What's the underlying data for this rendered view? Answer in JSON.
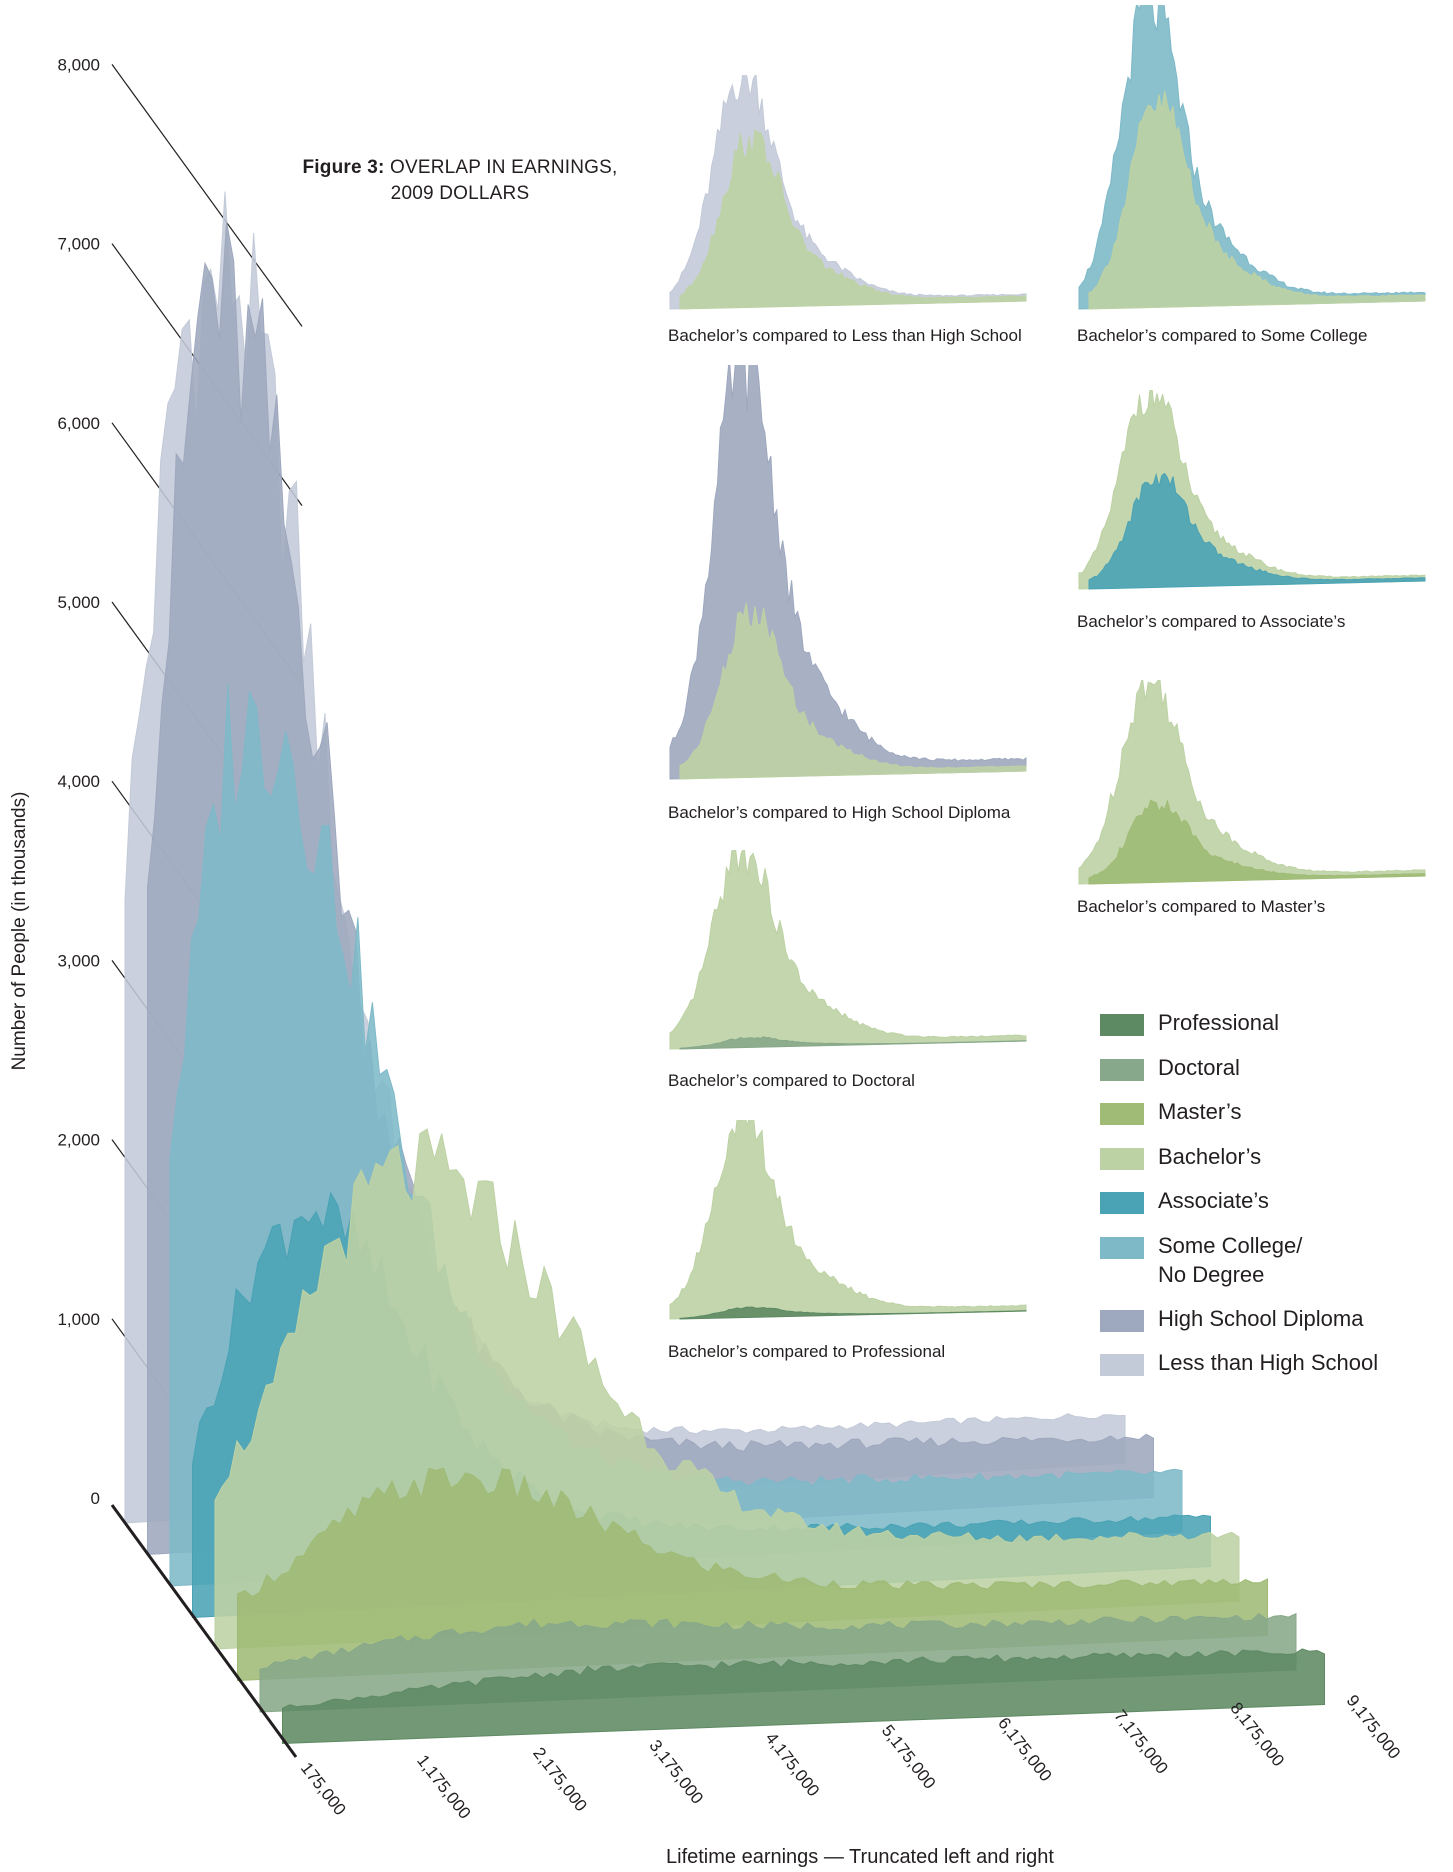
{
  "figure": {
    "title_bold": "Figure 3:",
    "title_rest_line1": "OVERLAP IN EARNINGS,",
    "title_rest_line2": "2009 DOLLARS"
  },
  "colors": {
    "Professional": "#5e8a63",
    "Doctoral": "#87a88a",
    "Master's": "#9fbb75",
    "Bachelor's": "#bdd2a4",
    "Associate's": "#4aa3b5",
    "Some College/No Degree": "#7eb9c8",
    "High School Diploma": "#9ea8be",
    "Less than High School": "#c3cad8"
  },
  "legend": [
    {
      "key": "Professional",
      "line1": "Professional",
      "line2": ""
    },
    {
      "key": "Doctoral",
      "line1": "Doctoral",
      "line2": ""
    },
    {
      "key": "Master's",
      "line1": "Master’s",
      "line2": ""
    },
    {
      "key": "Bachelor's",
      "line1": "Bachelor’s",
      "line2": ""
    },
    {
      "key": "Associate's",
      "line1": "Associate’s",
      "line2": ""
    },
    {
      "key": "Some College/No Degree",
      "line1": "Some College/",
      "line2": "No Degree"
    },
    {
      "key": "High School Diploma",
      "line1": "High School Diploma",
      "line2": ""
    },
    {
      "key": "Less than High School",
      "line1": "Less than High School",
      "line2": ""
    }
  ],
  "chart_data": [
    {
      "type": "area",
      "subtype": "3d-stacked-depth",
      "title": "Figure 3: OVERLAP IN EARNINGS, 2009 DOLLARS",
      "xlabel": "Lifetime earnings — Truncated left and right",
      "ylabel": "Number of People (in thousands)",
      "x_ticks": [
        "175,000",
        "1,175,000",
        "2,175,000",
        "3,175,000",
        "4,175,000",
        "5,175,000",
        "6,175,000",
        "7,175,000",
        "8,175,000",
        "9,175,000"
      ],
      "y_ticks": [
        "0",
        "1,000",
        "2,000",
        "3,000",
        "4,000",
        "5,000",
        "6,000",
        "7,000",
        "8,000"
      ],
      "ylim": [
        0,
        8000
      ],
      "xlim": [
        175000,
        9175000
      ],
      "grid": false,
      "legend_position": "right",
      "x": [
        175000,
        675000,
        1175000,
        1675000,
        2175000,
        2675000,
        3175000,
        3675000,
        4175000,
        4675000,
        5175000,
        5675000,
        6175000,
        6675000,
        7175000,
        7675000,
        8175000,
        8675000,
        9175000
      ],
      "series": [
        {
          "name": "Less than High School",
          "values": [
            3600,
            6500,
            6900,
            5400,
            3100,
            1700,
            900,
            500,
            330,
            260,
            230,
            210,
            200,
            200,
            190,
            190,
            180,
            180,
            170
          ]
        },
        {
          "name": "High School Diploma",
          "values": [
            4000,
            7000,
            6400,
            4600,
            2600,
            1500,
            900,
            600,
            450,
            370,
            330,
            310,
            300,
            290,
            280,
            270,
            260,
            250,
            240
          ]
        },
        {
          "name": "Some College/No Degree",
          "values": [
            2400,
            4600,
            4700,
            3700,
            2400,
            1450,
            900,
            600,
            440,
            360,
            320,
            300,
            290,
            280,
            270,
            260,
            250,
            240,
            230
          ]
        },
        {
          "name": "Associate's",
          "values": [
            800,
            1800,
            2200,
            1900,
            1300,
            800,
            520,
            380,
            300,
            260,
            240,
            230,
            220,
            210,
            200,
            195,
            190,
            185,
            180
          ]
        },
        {
          "name": "Bachelor's",
          "values": [
            800,
            1300,
            2100,
            2500,
            2500,
            2200,
            1700,
            1200,
            850,
            620,
            480,
            400,
            360,
            330,
            310,
            300,
            290,
            280,
            270
          ]
        },
        {
          "name": "Master's",
          "values": [
            350,
            550,
            800,
            950,
            980,
            900,
            750,
            580,
            440,
            360,
            310,
            280,
            260,
            250,
            240,
            230,
            220,
            215,
            210
          ]
        },
        {
          "name": "Doctoral",
          "values": [
            150,
            200,
            250,
            290,
            320,
            330,
            320,
            300,
            280,
            260,
            250,
            240,
            230,
            225,
            220,
            215,
            210,
            205,
            200
          ]
        },
        {
          "name": "Professional",
          "values": [
            100,
            130,
            160,
            190,
            220,
            240,
            250,
            250,
            245,
            240,
            235,
            230,
            225,
            220,
            215,
            210,
            205,
            200,
            195
          ]
        }
      ]
    },
    {
      "type": "area",
      "title": "Bachelor’s compared to Less than High School",
      "series": [
        {
          "name": "Bachelor's"
        },
        {
          "name": "Less than High School"
        }
      ]
    },
    {
      "type": "area",
      "title": "Bachelor’s compared to Some College",
      "series": [
        {
          "name": "Bachelor's"
        },
        {
          "name": "Some College/No Degree"
        }
      ]
    },
    {
      "type": "area",
      "title": "Bachelor’s compared to High School Diploma",
      "series": [
        {
          "name": "Bachelor's"
        },
        {
          "name": "High School Diploma"
        }
      ]
    },
    {
      "type": "area",
      "title": "Bachelor’s compared to Associate’s",
      "series": [
        {
          "name": "Bachelor's"
        },
        {
          "name": "Associate's"
        }
      ]
    },
    {
      "type": "area",
      "title": "Bachelor’s compared to Master’s",
      "series": [
        {
          "name": "Bachelor's"
        },
        {
          "name": "Master's"
        }
      ]
    },
    {
      "type": "area",
      "title": "Bachelor’s compared to Doctoral",
      "series": [
        {
          "name": "Bachelor's"
        },
        {
          "name": "Doctoral"
        }
      ]
    },
    {
      "type": "area",
      "title": "Bachelor’s compared to Professional",
      "series": [
        {
          "name": "Bachelor's"
        },
        {
          "name": "Professional"
        }
      ]
    }
  ],
  "mini_charts": [
    {
      "label": "Bachelor’s compared to Less than High School",
      "back": "Less than High School",
      "front": "Bachelor's",
      "back_peak": 8500,
      "front_peak": 6200
    },
    {
      "label": "Bachelor’s compared to Some College",
      "back": "Some College/No Degree",
      "front": "Bachelor's",
      "back_peak": 9600,
      "front_peak": 6500
    },
    {
      "label": "Bachelor’s compared to High School Diploma",
      "back": "High School Diploma",
      "front": "Bachelor's",
      "back_peak": 8900,
      "front_peak": 3500
    },
    {
      "label": "Bachelor’s compared to Associate’s",
      "back": "Bachelor's",
      "front": "Associate's",
      "back_peak": 3700,
      "front_peak": 2100
    },
    {
      "label": "Bachelor’s compared to Master’s",
      "back": "Bachelor's",
      "front": "Master's",
      "back_peak": 4300,
      "front_peak": 1700
    },
    {
      "label": "Bachelor’s compared to Doctoral",
      "back": "Bachelor's",
      "front": "Doctoral",
      "back_peak": 4000,
      "front_peak": 200
    },
    {
      "label": "Bachelor’s compared to Professional",
      "back": "Bachelor's",
      "front": "Professional",
      "back_peak": 3900,
      "front_peak": 200
    }
  ]
}
